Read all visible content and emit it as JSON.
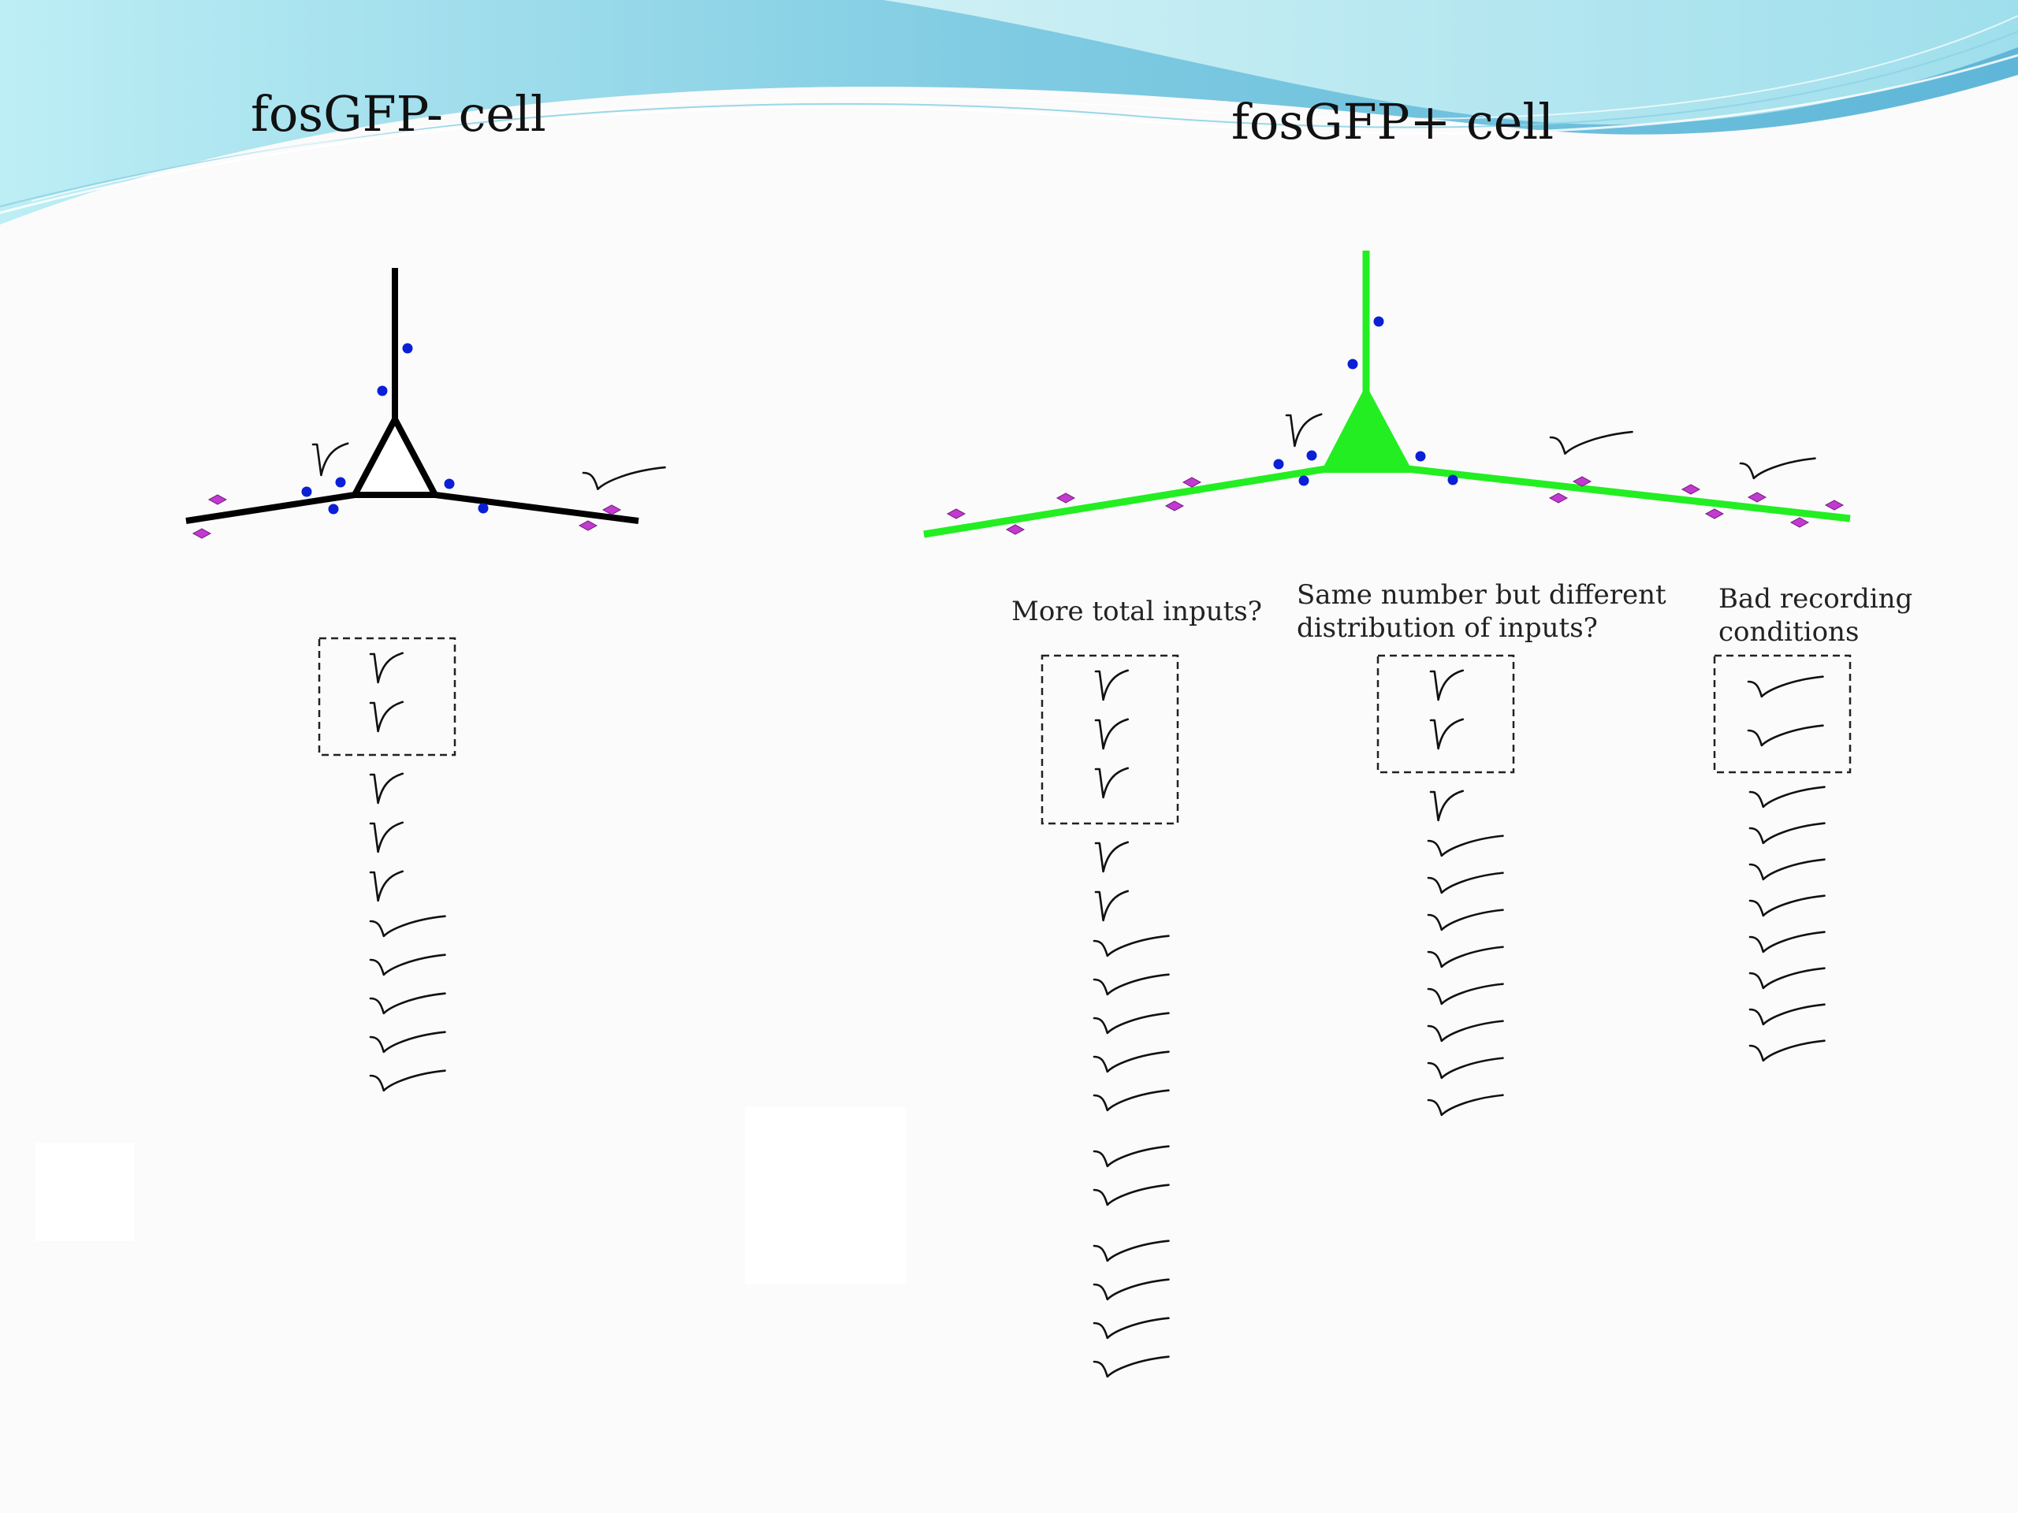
{
  "slide": {
    "left_title": "fosGFP- cell",
    "right_title": "fosGFP+ cell",
    "questions": {
      "more_inputs": "More total inputs?",
      "distribution": "Same number but different distribution of inputs?",
      "distribution_line1": "Same number but different",
      "distribution_line2": "distribution of inputs?",
      "bad_recording": "Bad recording conditions",
      "bad_recording_line1": "Bad recording",
      "bad_recording_line2": "conditions"
    }
  },
  "colors": {
    "negative_cell": "#000000",
    "positive_cell": "#22ee22",
    "synapse_dot": "#0a1fd6",
    "synapse_diamond": "#c23ad0",
    "trace": "#111111",
    "header_wave_light": "#a6e3ee",
    "header_wave_dark": "#6cc4dd"
  },
  "trace_columns": {
    "fosgfp_negative": {
      "boxed": 2,
      "fast": 3,
      "slow": 5
    },
    "more_total_inputs": {
      "boxed": 3,
      "fast": 2,
      "slow": 11
    },
    "different_distribution": {
      "boxed": 2,
      "fast": 1,
      "slow": 8
    },
    "bad_recording_conditions": {
      "boxed": 2,
      "fast": 0,
      "slow": 8
    }
  }
}
